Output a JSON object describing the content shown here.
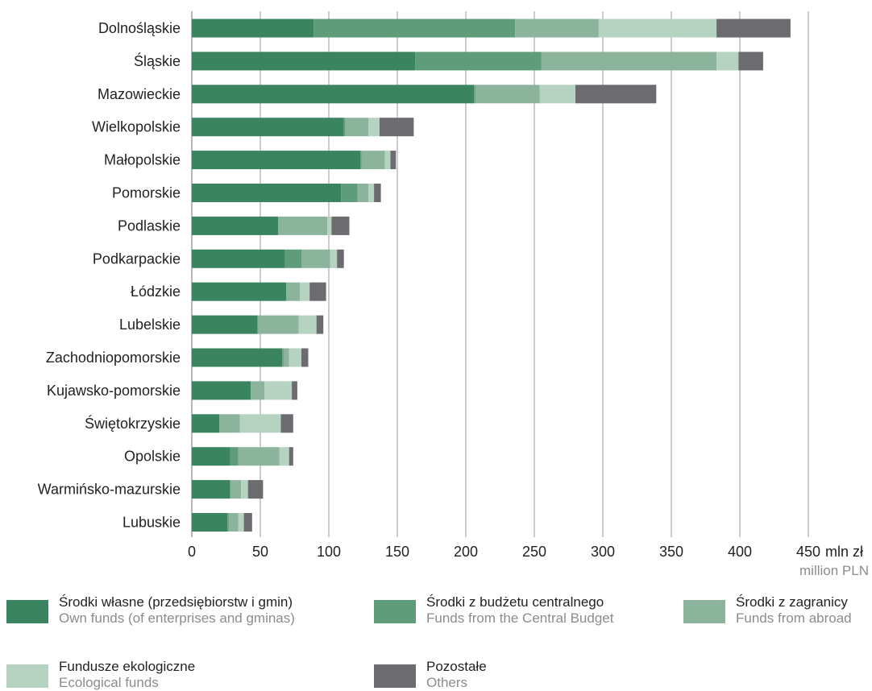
{
  "chart_data": {
    "type": "bar",
    "orientation": "horizontal",
    "stacked": true,
    "categories": [
      "Dolnośląskie",
      "Śląskie",
      "Mazowieckie",
      "Wielkopolskie",
      "Małopolskie",
      "Pomorskie",
      "Podlaskie",
      "Podkarpackie",
      "Łódzkie",
      "Lubelskie",
      "Zachodniopomorskie",
      "Kujawsko-pomorskie",
      "Świętokrzyskie",
      "Opolskie",
      "Warmińsko-mazurskie",
      "Lubuskie"
    ],
    "series": [
      {
        "name": "Środki własne (przedsiębiorstw i gmin)",
        "name_en": "Own funds (of enterprises and gminas)",
        "color": "#3a8460",
        "values": [
          89,
          163,
          206,
          111,
          123,
          109,
          63,
          68,
          69,
          48,
          66,
          43,
          20,
          28,
          28,
          26
        ]
      },
      {
        "name": "Środki z budżetu centralnego",
        "name_en": "Funds from the Central Budget",
        "color": "#5f9c7a",
        "values": [
          147,
          92,
          1,
          1,
          1,
          12,
          0,
          12,
          0,
          0,
          1,
          0,
          0,
          6,
          0,
          1
        ]
      },
      {
        "name": "Środki z zagranicy",
        "name_en": "Funds from abroad",
        "color": "#8cb49c",
        "values": [
          61,
          128,
          47,
          17,
          17,
          8,
          36,
          21,
          10,
          30,
          4,
          10,
          15,
          30,
          8,
          7
        ]
      },
      {
        "name": "Fundusze ekologiczne",
        "name_en": "Ecological funds",
        "color": "#b6d2c0",
        "values": [
          86,
          16,
          26,
          8,
          4,
          4,
          3,
          5,
          7,
          13,
          9,
          20,
          30,
          7,
          5,
          4
        ]
      },
      {
        "name": "Pozostałe",
        "name_en": "Others",
        "color": "#6b6b70",
        "values": [
          54,
          18,
          59,
          25,
          4,
          5,
          13,
          5,
          12,
          5,
          5,
          4,
          9,
          3,
          11,
          6
        ]
      }
    ],
    "x_ticks": [
      0,
      50,
      100,
      150,
      200,
      250,
      300,
      350,
      400,
      450
    ],
    "xlim": [
      0,
      450
    ],
    "xlabel": "mln zł",
    "xlabel_en": "million PLN",
    "grid": true,
    "legend_position": "bottom"
  }
}
